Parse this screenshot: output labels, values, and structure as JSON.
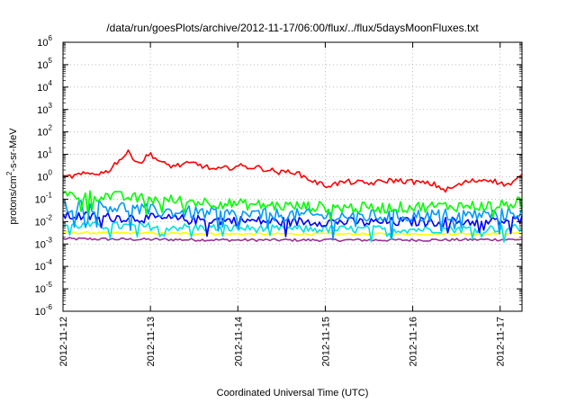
{
  "chart_data": {
    "type": "line",
    "title": "/data/run/goesPlots/archive/2012-11-17/06:00/flux/../flux/5daysMoonFluxes.txt",
    "xlabel": "Coordinated Universal Time (UTC)",
    "ylabel": {
      "base": "protons/cm",
      "sup": "2",
      "rest": "-s-sr-MeV"
    },
    "y_scale": "log",
    "ylim": [
      1e-06,
      1000000.0
    ],
    "y_ticks": [
      {
        "exp": -6,
        "label": "-6"
      },
      {
        "exp": -5,
        "label": "-5"
      },
      {
        "exp": -4,
        "label": "-4"
      },
      {
        "exp": -3,
        "label": "-3"
      },
      {
        "exp": -2,
        "label": "-2"
      },
      {
        "exp": -1,
        "label": "-1"
      },
      {
        "exp": 0,
        "label": "0"
      },
      {
        "exp": 1,
        "label": "1"
      },
      {
        "exp": 2,
        "label": "2"
      },
      {
        "exp": 3,
        "label": "3"
      },
      {
        "exp": 4,
        "label": "4"
      },
      {
        "exp": 5,
        "label": "5"
      },
      {
        "exp": 6,
        "label": "6"
      }
    ],
    "y_tick_base": "10",
    "x_range_days": [
      "2012-11-12",
      "2012-11-17T06:00"
    ],
    "x_ticks": [
      "2012-11-12",
      "2012-11-13",
      "2012-11-14",
      "2012-11-15",
      "2012-11-16",
      "2012-11-17"
    ],
    "grid": true,
    "legend": "none",
    "series": [
      {
        "color": "#ff0000",
        "noise": 0.12,
        "points": [
          [
            "2012-11-12T00:00",
            0.9
          ],
          [
            "2012-11-12T06:00",
            1.3
          ],
          [
            "2012-11-12T12:00",
            1.6
          ],
          [
            "2012-11-12T15:00",
            5.0
          ],
          [
            "2012-11-12T18:00",
            12
          ],
          [
            "2012-11-12T21:00",
            4.0
          ],
          [
            "2012-11-13T00:00",
            11
          ],
          [
            "2012-11-13T03:00",
            4.0
          ],
          [
            "2012-11-13T06:00",
            3.0
          ],
          [
            "2012-11-13T12:00",
            4.0
          ],
          [
            "2012-11-13T18:00",
            2.0
          ],
          [
            "2012-11-14T00:00",
            3.0
          ],
          [
            "2012-11-14T06:00",
            2.5
          ],
          [
            "2012-11-14T12:00",
            1.5
          ],
          [
            "2012-11-14T15:00",
            1.8
          ],
          [
            "2012-11-14T21:00",
            0.6
          ],
          [
            "2012-11-15T00:00",
            0.4
          ],
          [
            "2012-11-15T06:00",
            0.6
          ],
          [
            "2012-11-15T12:00",
            0.5
          ],
          [
            "2012-11-15T18:00",
            0.7
          ],
          [
            "2012-11-16T00:00",
            0.6
          ],
          [
            "2012-11-16T06:00",
            0.45
          ],
          [
            "2012-11-16T09:00",
            0.25
          ],
          [
            "2012-11-16T15:00",
            0.6
          ],
          [
            "2012-11-16T21:00",
            0.8
          ],
          [
            "2012-11-17T00:00",
            0.5
          ],
          [
            "2012-11-17T03:00",
            0.45
          ],
          [
            "2012-11-17T06:00",
            1.1
          ]
        ]
      },
      {
        "color": "#00ff00",
        "noise": 0.25,
        "points": [
          [
            "2012-11-12T00:00",
            0.15
          ],
          [
            "2012-11-12T12:00",
            0.14
          ],
          [
            "2012-11-13T00:00",
            0.1
          ],
          [
            "2012-11-13T12:00",
            0.08
          ],
          [
            "2012-11-14T00:00",
            0.06
          ],
          [
            "2012-11-14T12:00",
            0.05
          ],
          [
            "2012-11-15T00:00",
            0.045
          ],
          [
            "2012-11-15T12:00",
            0.04
          ],
          [
            "2012-11-16T00:00",
            0.045
          ],
          [
            "2012-11-16T12:00",
            0.05
          ],
          [
            "2012-11-17T00:00",
            0.05
          ],
          [
            "2012-11-17T06:00",
            0.08
          ]
        ]
      },
      {
        "color": "#0099ff",
        "noise": 0.3,
        "points": [
          [
            "2012-11-12T00:00",
            0.05
          ],
          [
            "2012-11-12T12:00",
            0.05
          ],
          [
            "2012-11-13T00:00",
            0.03
          ],
          [
            "2012-11-13T12:00",
            0.025
          ],
          [
            "2012-11-14T00:00",
            0.02
          ],
          [
            "2012-11-14T12:00",
            0.02
          ],
          [
            "2012-11-15T00:00",
            0.018
          ],
          [
            "2012-11-15T12:00",
            0.017
          ],
          [
            "2012-11-16T00:00",
            0.018
          ],
          [
            "2012-11-16T12:00",
            0.02
          ],
          [
            "2012-11-17T00:00",
            0.02
          ],
          [
            "2012-11-17T06:00",
            0.03
          ]
        ]
      },
      {
        "color": "#0000ff",
        "noise": 0.22,
        "points": [
          [
            "2012-11-12T00:00",
            0.018
          ],
          [
            "2012-11-12T12:00",
            0.016
          ],
          [
            "2012-11-13T00:00",
            0.014
          ],
          [
            "2012-11-13T12:00",
            0.012
          ],
          [
            "2012-11-14T00:00",
            0.011
          ],
          [
            "2012-11-14T12:00",
            0.01
          ],
          [
            "2012-11-15T00:00",
            0.01
          ],
          [
            "2012-11-15T12:00",
            0.009
          ],
          [
            "2012-11-16T00:00",
            0.01
          ],
          [
            "2012-11-16T12:00",
            0.01
          ],
          [
            "2012-11-17T00:00",
            0.01
          ],
          [
            "2012-11-17T06:00",
            0.012
          ]
        ]
      },
      {
        "color": "#00e0e0",
        "noise": 0.18,
        "points": [
          [
            "2012-11-12T00:00",
            0.007
          ],
          [
            "2012-11-13T00:00",
            0.006
          ],
          [
            "2012-11-14T00:00",
            0.005
          ],
          [
            "2012-11-15T00:00",
            0.0045
          ],
          [
            "2012-11-16T00:00",
            0.0045
          ],
          [
            "2012-11-17T06:00",
            0.005
          ]
        ]
      },
      {
        "color": "#ffff00",
        "noise": 0.05,
        "points": [
          [
            "2012-11-12T00:00",
            0.0032
          ],
          [
            "2012-11-13T00:00",
            0.003
          ],
          [
            "2012-11-14T00:00",
            0.0028
          ],
          [
            "2012-11-15T00:00",
            0.0028
          ],
          [
            "2012-11-16T00:00",
            0.0028
          ],
          [
            "2012-11-17T06:00",
            0.003
          ]
        ]
      },
      {
        "color": "#993399",
        "noise": 0.06,
        "points": [
          [
            "2012-11-12T00:00",
            0.0017
          ],
          [
            "2012-11-13T00:00",
            0.0016
          ],
          [
            "2012-11-14T00:00",
            0.0015
          ],
          [
            "2012-11-15T00:00",
            0.0015
          ],
          [
            "2012-11-16T00:00",
            0.0015
          ],
          [
            "2012-11-17T06:00",
            0.0016
          ]
        ]
      }
    ]
  }
}
